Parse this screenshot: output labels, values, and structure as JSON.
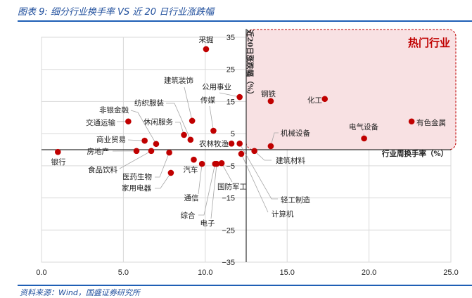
{
  "header": {
    "title": "图表 9:  细分行业换手率 VS 近 20 日行业涨跌幅"
  },
  "footer": {
    "source": "资料来源：Wind，国盛证券研究所"
  },
  "chart_data": {
    "type": "scatter",
    "title": "",
    "xlabel": "行业周换手率（%）",
    "ylabel": "近20日涨跌幅（%）",
    "xlim": [
      0,
      25
    ],
    "ylim": [
      -35,
      35
    ],
    "x_ticks": [
      "0.0",
      "5.0",
      "10.0",
      "15.0",
      "20.0",
      "25.0"
    ],
    "y_ticks": [
      "35",
      "25",
      "15",
      "5",
      "−5",
      "−15",
      "−25",
      "−35"
    ],
    "y_tick_values": [
      35,
      25,
      15,
      5,
      -5,
      -15,
      -25,
      -35
    ],
    "x_tick_values": [
      0,
      5,
      10,
      15,
      20,
      25
    ],
    "axis_cross": {
      "x": 12.5,
      "y": 0
    },
    "grid": true,
    "highlight_region": {
      "label": "热门行业",
      "x_range": [
        12.5,
        25
      ],
      "y_range": [
        0,
        35
      ],
      "fill": "#f8e1e3",
      "border": "#c00000"
    },
    "marker_color": "#c00000",
    "points": [
      {
        "name": "采掘",
        "x": 10.05,
        "y": 31.3
      },
      {
        "name": "建筑装饰",
        "x": 9.2,
        "y": 9.0
      },
      {
        "name": "公用事业",
        "x": 12.1,
        "y": 16.4
      },
      {
        "name": "传媒",
        "x": 10.5,
        "y": 5.9
      },
      {
        "name": "纺织服装",
        "x": 9.1,
        "y": 3.1
      },
      {
        "name": "非银金融",
        "x": 7.0,
        "y": 1.8
      },
      {
        "name": "休闲服务",
        "x": 8.7,
        "y": 4.6
      },
      {
        "name": "交通运输",
        "x": 5.3,
        "y": 8.8
      },
      {
        "name": "商业贸易",
        "x": 6.3,
        "y": 2.8
      },
      {
        "name": "房地产",
        "x": 5.8,
        "y": -0.4
      },
      {
        "name": "银行",
        "x": 1.0,
        "y": -0.7
      },
      {
        "name": "食品饮料",
        "x": 6.7,
        "y": -0.4
      },
      {
        "name": "医药生物",
        "x": 7.8,
        "y": -0.9
      },
      {
        "name": "家用电器",
        "x": 7.9,
        "y": -7.2
      },
      {
        "name": "汽车",
        "x": 9.3,
        "y": -3.1
      },
      {
        "name": "通信",
        "x": 9.8,
        "y": -4.4
      },
      {
        "name": "综合",
        "x": 10.6,
        "y": -4.4
      },
      {
        "name": "电子",
        "x": 10.7,
        "y": -4.4
      },
      {
        "name": "国防军工",
        "x": 11.0,
        "y": -4.2
      },
      {
        "name": "农林牧渔",
        "x": 11.6,
        "y": 1.9
      },
      {
        "name": "轻工制造",
        "x": 12.1,
        "y": 1.9
      },
      {
        "name": "计算机",
        "x": 12.2,
        "y": -1.3
      },
      {
        "name": "建筑材料",
        "x": 13.0,
        "y": -0.4
      },
      {
        "name": "机械设备",
        "x": 14.0,
        "y": 1.1
      },
      {
        "name": "钢铁",
        "x": 14.0,
        "y": 15.1
      },
      {
        "name": "化工",
        "x": 17.3,
        "y": 15.8
      },
      {
        "name": "电气设备",
        "x": 19.7,
        "y": 3.5
      },
      {
        "name": "有色金属",
        "x": 22.6,
        "y": 8.8
      }
    ]
  }
}
